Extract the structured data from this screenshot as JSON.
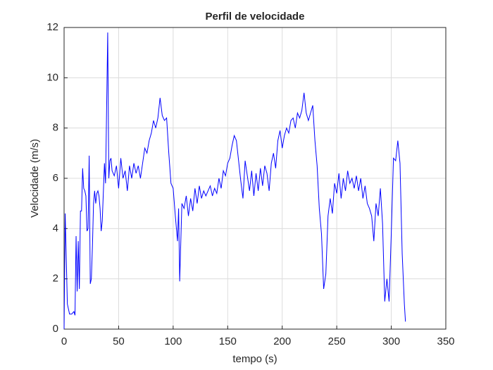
{
  "chart_data": {
    "type": "line",
    "title": "Perfil de velocidade",
    "x_label": "tempo (s)",
    "y_label": "Velocidade (m/s)",
    "xlim": [
      0,
      350
    ],
    "xticks": [
      0,
      50,
      100,
      150,
      200,
      250,
      300,
      350
    ],
    "ylim": [
      0,
      12
    ],
    "yticks": [
      0,
      2,
      4,
      6,
      8,
      10,
      12
    ],
    "grid": true,
    "series": [
      {
        "name": "velocidade",
        "color": "#0000ff",
        "x": [
          0,
          1,
          3,
          5,
          7,
          9,
          10,
          11,
          12,
          13,
          14,
          15,
          16,
          17,
          18,
          19,
          20,
          21,
          22,
          23,
          24,
          25,
          26,
          27,
          28,
          29,
          30,
          31,
          32,
          33,
          34,
          35,
          37,
          38,
          40,
          41,
          42,
          43,
          44,
          46,
          48,
          50,
          52,
          54,
          56,
          58,
          60,
          62,
          64,
          66,
          68,
          70,
          72,
          74,
          76,
          78,
          80,
          82,
          84,
          86,
          88,
          90,
          92,
          94,
          96,
          98,
          100,
          102,
          104,
          105,
          106,
          108,
          110,
          112,
          114,
          116,
          118,
          120,
          122,
          124,
          126,
          128,
          130,
          132,
          134,
          136,
          138,
          140,
          142,
          144,
          146,
          148,
          150,
          152,
          154,
          156,
          158,
          160,
          162,
          164,
          166,
          168,
          170,
          172,
          174,
          176,
          178,
          180,
          182,
          184,
          186,
          188,
          190,
          192,
          194,
          196,
          198,
          200,
          202,
          204,
          206,
          208,
          210,
          212,
          214,
          216,
          218,
          220,
          222,
          224,
          226,
          228,
          230,
          232,
          234,
          236,
          238,
          240,
          242,
          244,
          246,
          248,
          250,
          252,
          254,
          256,
          258,
          260,
          262,
          264,
          266,
          268,
          270,
          272,
          274,
          276,
          278,
          280,
          282,
          284,
          286,
          288,
          290,
          292,
          294,
          296,
          298,
          300,
          302,
          304,
          306,
          308,
          310,
          312,
          313
        ],
        "values": [
          0,
          4.6,
          1.0,
          0.6,
          0.6,
          0.7,
          0.55,
          3.7,
          1.5,
          3.5,
          1.6,
          4.7,
          4.7,
          6.4,
          5.6,
          5.5,
          5.3,
          3.9,
          4.0,
          6.9,
          1.8,
          2.0,
          3.3,
          5.0,
          5.5,
          5.0,
          5.4,
          5.5,
          5.3,
          4.8,
          3.9,
          4.3,
          6.6,
          5.8,
          11.8,
          6.0,
          6.7,
          6.8,
          6.3,
          6.1,
          6.5,
          5.6,
          6.8,
          6.0,
          6.3,
          5.5,
          6.5,
          6.0,
          6.6,
          6.2,
          6.5,
          6.0,
          6.6,
          7.2,
          7.0,
          7.5,
          7.8,
          8.3,
          8.0,
          8.4,
          9.2,
          8.5,
          8.3,
          8.4,
          7.0,
          5.8,
          5.6,
          4.5,
          3.5,
          4.8,
          1.9,
          5.0,
          4.8,
          5.3,
          4.5,
          5.2,
          4.7,
          5.6,
          5.0,
          5.7,
          5.2,
          5.5,
          5.3,
          5.5,
          5.7,
          5.3,
          5.6,
          5.4,
          6.0,
          5.6,
          6.3,
          6.1,
          6.6,
          6.8,
          7.3,
          7.7,
          7.5,
          6.7,
          5.9,
          5.2,
          6.7,
          6.1,
          5.5,
          6.3,
          5.3,
          6.2,
          5.5,
          6.4,
          5.7,
          6.5,
          6.2,
          5.5,
          6.6,
          7.0,
          6.4,
          7.5,
          7.9,
          7.2,
          7.7,
          8.0,
          7.8,
          8.3,
          8.4,
          8.0,
          8.6,
          8.4,
          8.7,
          9.4,
          8.6,
          8.3,
          8.6,
          8.9,
          7.5,
          6.5,
          4.8,
          3.8,
          1.6,
          2.2,
          4.5,
          5.2,
          4.6,
          5.8,
          5.4,
          6.2,
          5.2,
          6.0,
          5.5,
          6.3,
          5.8,
          6.0,
          5.6,
          6.1,
          5.5,
          6.0,
          5.2,
          5.7,
          5.0,
          4.8,
          4.5,
          3.5,
          5.0,
          4.5,
          5.6,
          4.2,
          1.1,
          2.0,
          1.1,
          3.8,
          6.8,
          6.7,
          7.5,
          6.6,
          3.0,
          1.0,
          0.3
        ]
      }
    ]
  }
}
